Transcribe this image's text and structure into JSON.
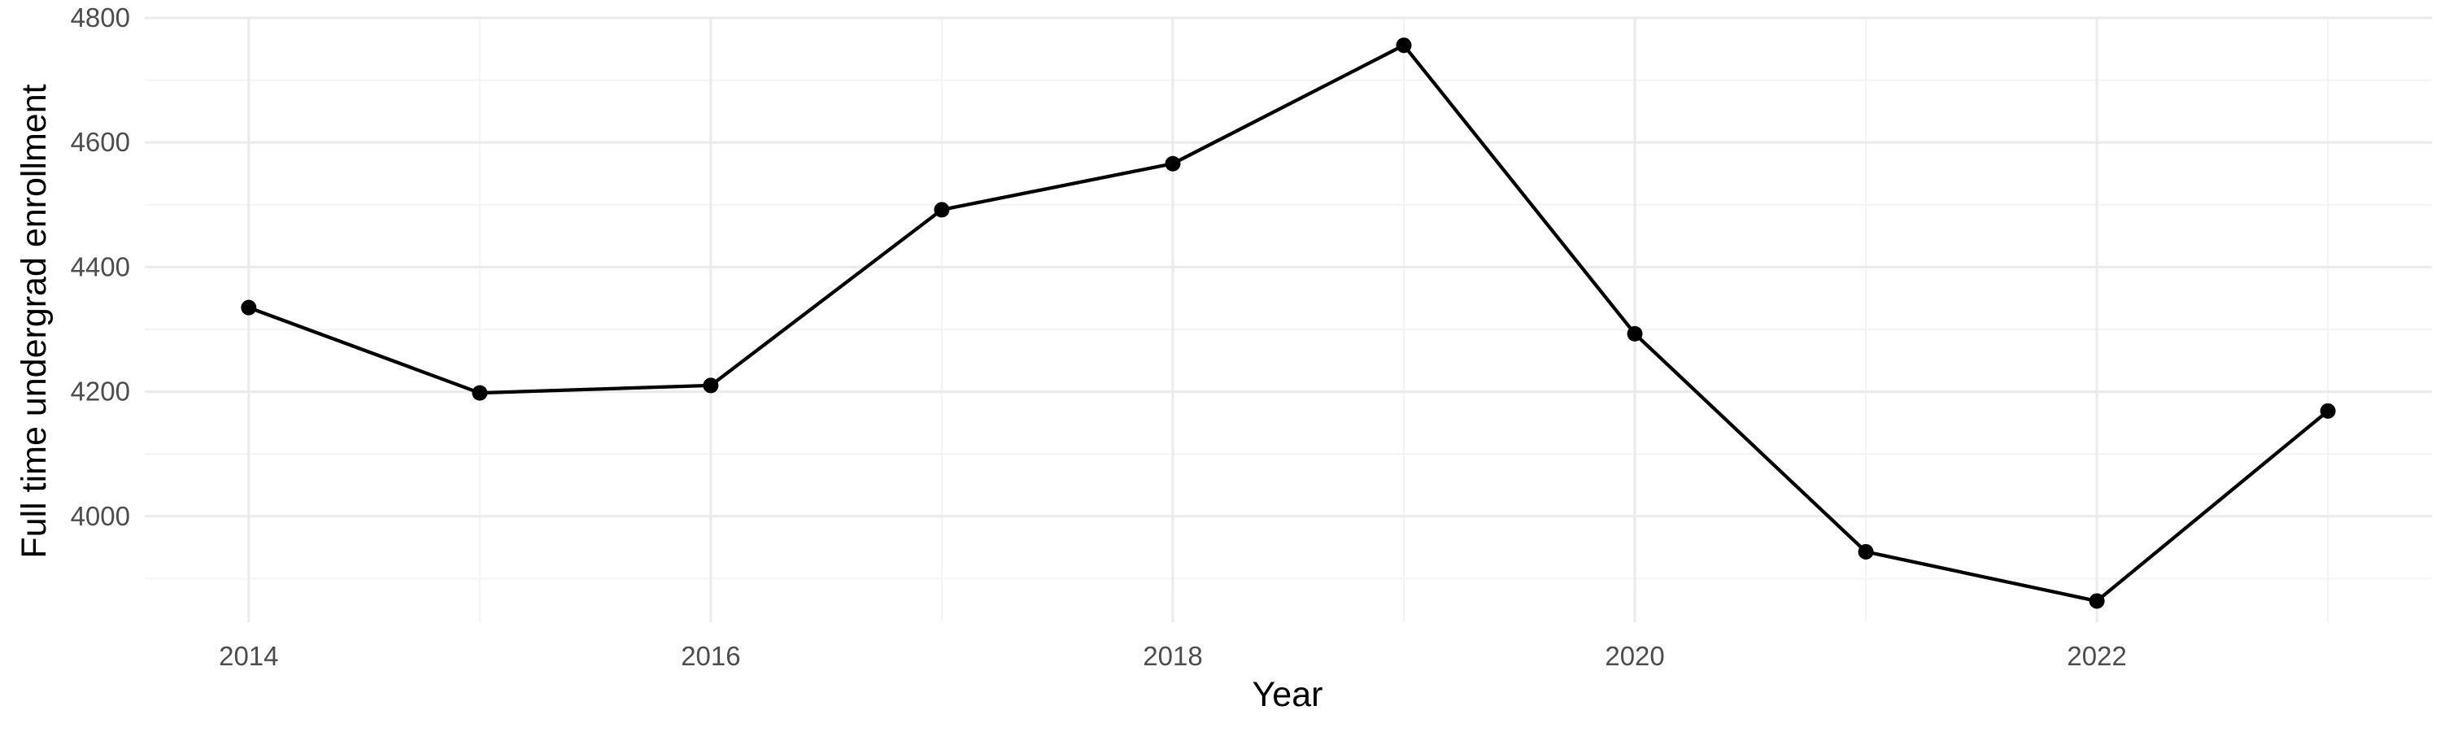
{
  "chart_data": {
    "type": "line",
    "title": "",
    "xlabel": "Year",
    "ylabel": "Full time undergrad enrollment",
    "x": [
      2014,
      2015,
      2016,
      2017,
      2018,
      2019,
      2020,
      2021,
      2022,
      2023
    ],
    "series": [
      {
        "values": [
          4335,
          4198,
          4210,
          4492,
          4566,
          4756,
          4293,
          3943,
          3864,
          4169
        ],
        "color": "#000000"
      }
    ],
    "xlim": [
      2013.55,
      2023.45
    ],
    "ylim": [
      3830,
      4800
    ],
    "x_ticks": [
      2014,
      2016,
      2018,
      2020,
      2022
    ],
    "x_tick_labels": [
      "2014",
      "2016",
      "2018",
      "2020",
      "2022"
    ],
    "x_minor_ticks": [
      2015,
      2017,
      2019,
      2021,
      2023
    ],
    "y_ticks": [
      4000,
      4200,
      4400,
      4600,
      4800
    ],
    "y_tick_labels": [
      "4000",
      "4200",
      "4400",
      "4600",
      "4800"
    ],
    "y_minor_ticks": [
      3900,
      4100,
      4300,
      4500,
      4700
    ],
    "grid": true,
    "legend": "none",
    "markers": true
  }
}
